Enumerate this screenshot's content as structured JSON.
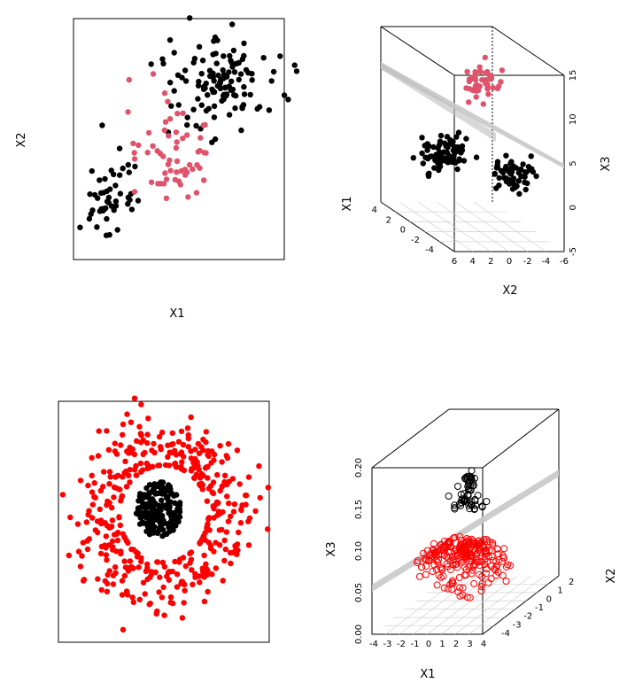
{
  "colors": {
    "black": "#000000",
    "pink": "#DF536B",
    "red": "#FF0000",
    "plane": "#C8C8C8"
  },
  "chart_data": [
    {
      "type": "scatter",
      "panel": "top-left",
      "xlabel": "X1",
      "ylabel": "X2",
      "axes_shown": false,
      "series": [
        {
          "color": "#000000",
          "description_points": [
            {
              "x": 1.6,
              "y": 2.3
            },
            {
              "x": 1.9,
              "y": 2.0
            },
            {
              "x": 1.4,
              "y": 2.5
            },
            {
              "x": 2.2,
              "y": 1.7
            },
            {
              "x": 2.5,
              "y": 2.2
            },
            {
              "x": 1.2,
              "y": 1.5
            },
            {
              "x": 2.0,
              "y": 2.7
            },
            {
              "x": -2.4,
              "y": -2.2
            },
            {
              "x": -2.0,
              "y": -2.6
            },
            {
              "x": -2.7,
              "y": -1.6
            },
            {
              "x": -1.7,
              "y": -2.9
            },
            {
              "x": -2.9,
              "y": -2.4
            },
            {
              "x": -2.2,
              "y": -3.2
            }
          ]
        },
        {
          "color": "#DF536B",
          "description_points": [
            {
              "x": -0.9,
              "y": 0.3
            },
            {
              "x": -0.3,
              "y": -0.2
            },
            {
              "x": 0.2,
              "y": 0.4
            },
            {
              "x": -0.6,
              "y": -0.7
            },
            {
              "x": 0.5,
              "y": -0.3
            },
            {
              "x": -1.2,
              "y": 0.6
            }
          ]
        }
      ]
    },
    {
      "type": "scatter",
      "panel": "top-right",
      "projection": "3d",
      "xlabel": "X1",
      "ylabel": "X2",
      "zlabel": "X3",
      "x_ticks": [
        "4",
        "2",
        "0",
        "-2",
        "-4"
      ],
      "y_ticks": [
        "6",
        "4",
        "2",
        "0",
        "-2",
        "-4",
        "-6"
      ],
      "z_ticks": [
        "15",
        "10",
        "5",
        "0",
        "-5"
      ],
      "zlim": [
        -5,
        15
      ],
      "plane": true,
      "series": [
        {
          "color": "#000000",
          "clusters": [
            "around X2=4, X3=7",
            "around X2=-3, X3=3"
          ]
        },
        {
          "color": "#DF536B",
          "clusters": [
            "around X2=0, X3=14"
          ]
        }
      ]
    },
    {
      "type": "scatter",
      "panel": "bottom-left",
      "axes_shown": false,
      "series": [
        {
          "color": "#000000",
          "shape": "filled disk, radius ~1"
        },
        {
          "color": "#FF0000",
          "shape": "filled ring, radius ~2-3"
        }
      ]
    },
    {
      "type": "scatter",
      "panel": "bottom-right",
      "projection": "3d",
      "xlabel": "X1",
      "ylabel": "X2",
      "zlabel": "X3",
      "x_ticks": [
        "-4",
        "-3",
        "-2",
        "-1",
        "0",
        "1",
        "2",
        "3",
        "4"
      ],
      "y_ticks": [
        "2",
        "1",
        "0",
        "-1",
        "-2",
        "-3",
        "-4"
      ],
      "z_ticks": [
        "0.20",
        "0.15",
        "0.10",
        "0.05",
        "0.00"
      ],
      "zlim": [
        0,
        0.2
      ],
      "plane": true,
      "marker": "open circle",
      "series": [
        {
          "color": "#000000",
          "description": "peak near X3=0.18-0.20"
        },
        {
          "color": "#FF0000",
          "description": "ring near X3=0.00-0.10"
        }
      ]
    }
  ]
}
